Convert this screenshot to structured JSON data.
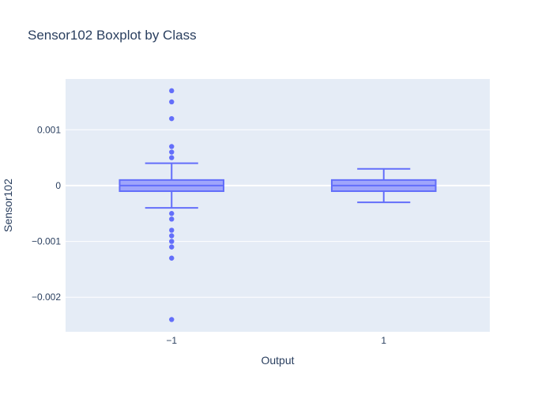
{
  "chart_data": {
    "type": "box",
    "title": "Sensor102 Boxplot by Class",
    "xlabel": "Output",
    "ylabel": "Sensor102",
    "categories": [
      "−1",
      "1"
    ],
    "ylim": [
      -0.00262,
      0.00191
    ],
    "yticks": [
      0.001,
      0,
      -0.001,
      -0.002
    ],
    "ytick_labels": [
      "0.001",
      "0",
      "−0.001",
      "−0.002"
    ],
    "grid": true,
    "legend": "none",
    "colors": {
      "plot_bg": "#e5ecf6",
      "box_line": "#636efa",
      "box_fill": "#9fa5fb",
      "grid": "#ffffff",
      "text": "#2a3f5f"
    },
    "boxes": [
      {
        "category": "−1",
        "q1": -0.0001,
        "median": 0.0,
        "q3": 0.0001,
        "lower_whisker": -0.0004,
        "upper_whisker": 0.0004,
        "outliers": [
          0.0017,
          0.0015,
          0.0012,
          0.0007,
          0.0006,
          0.0005,
          -0.0005,
          -0.0006,
          -0.0008,
          -0.0009,
          -0.001,
          -0.0011,
          -0.0013,
          -0.0024
        ]
      },
      {
        "category": "1",
        "q1": -0.0001,
        "median": 0.0,
        "q3": 0.0001,
        "lower_whisker": -0.0003,
        "upper_whisker": 0.0003,
        "outliers": []
      }
    ]
  }
}
